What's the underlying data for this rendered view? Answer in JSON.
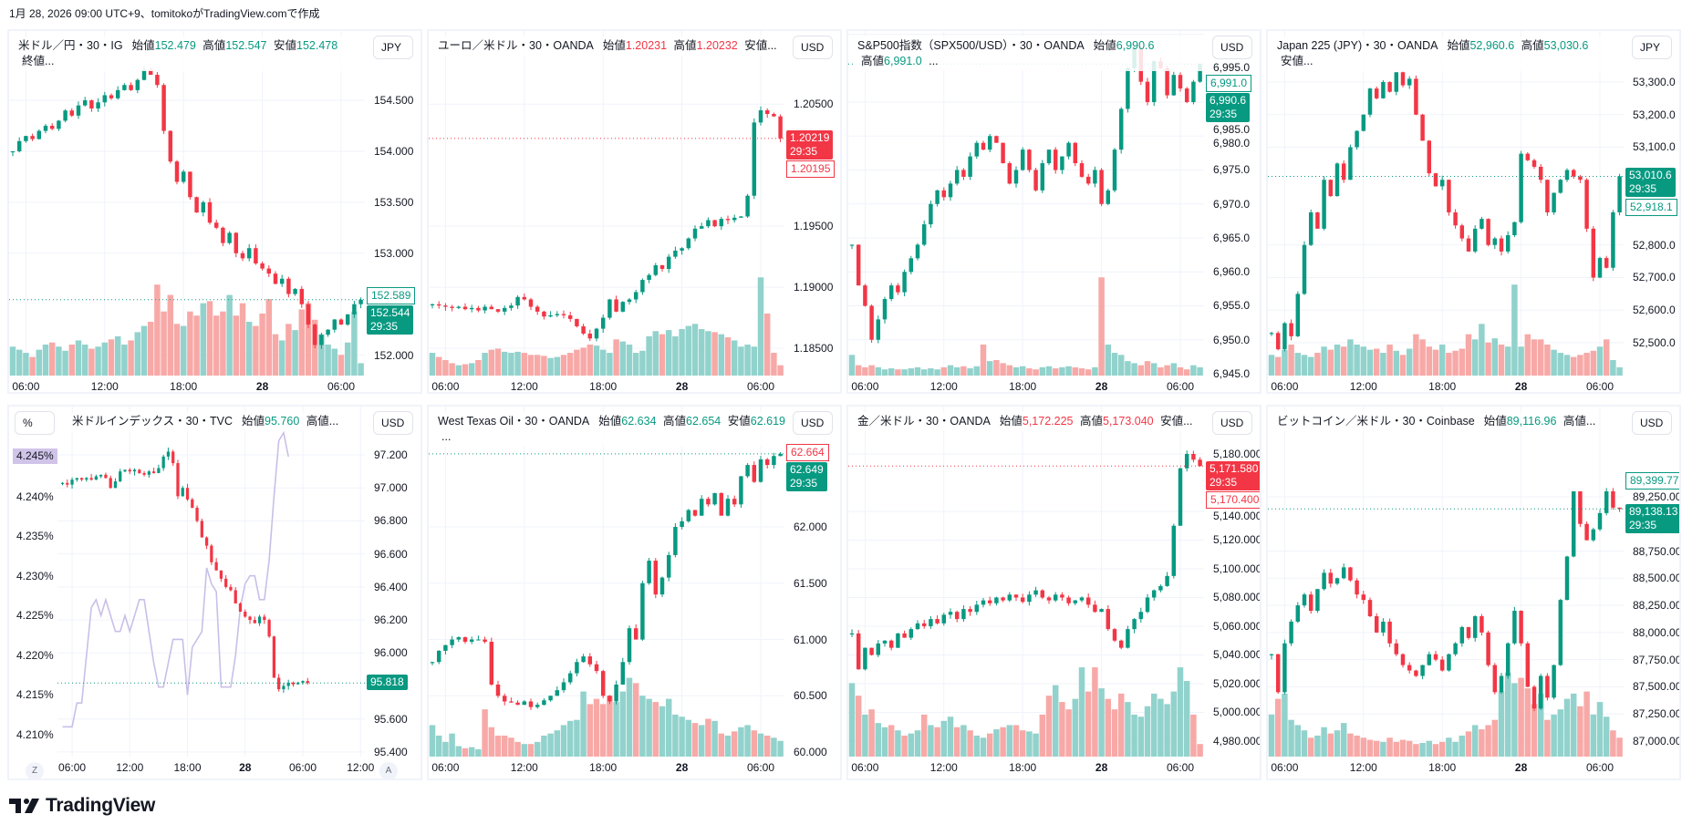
{
  "caption": "1月 28, 2026 09:00 UTC+9、tomitokoがTradingView.comで作成",
  "brand": "TradingView",
  "colors": {
    "up": "#089981",
    "down": "#f23645",
    "vol_up": "#92d2cc",
    "vol_down": "#f7a9a7",
    "yield": "#c9bfe8"
  },
  "charts": [
    {
      "symbol": "米ドル／円・30・IG",
      "ohlc": [
        {
          "l": "始値",
          "v": "152.479"
        },
        {
          "l": "高値",
          "v": "152.547"
        },
        {
          "l": "安値",
          "v": "152.478"
        }
      ],
      "tail": "終値...",
      "dir": "up",
      "currency": "JPY",
      "ylim": [
        151.8,
        155.18
      ],
      "yticks": [
        "154.500",
        "154.000",
        "153.500",
        "153.000",
        "152.000"
      ],
      "time_labels": [
        "06:00",
        "12:00",
        "18:00",
        "28",
        "06:00"
      ],
      "last": {
        "value": "152.544",
        "countdown": "29:35",
        "dir": "up"
      },
      "outline": {
        "value": "152.589",
        "dir": "up",
        "pos": "above"
      },
      "closes": [
        154.0,
        154.1,
        154.15,
        154.12,
        154.2,
        154.25,
        154.22,
        154.3,
        154.4,
        154.35,
        154.45,
        154.5,
        154.42,
        154.48,
        154.55,
        154.52,
        154.6,
        154.65,
        154.6,
        154.7,
        154.8,
        154.75,
        154.65,
        154.2,
        153.9,
        153.7,
        153.8,
        153.55,
        153.4,
        153.5,
        153.3,
        153.25,
        153.1,
        153.2,
        153.0,
        152.95,
        153.05,
        152.9,
        152.85,
        152.8,
        152.7,
        152.75,
        152.6,
        152.65,
        152.5,
        152.3,
        152.1,
        152.2,
        152.25,
        152.35,
        152.3,
        152.4,
        152.5,
        152.544
      ],
      "volumes": [
        28,
        25,
        22,
        18,
        25,
        30,
        32,
        28,
        24,
        30,
        34,
        30,
        26,
        28,
        32,
        35,
        38,
        30,
        34,
        42,
        48,
        52,
        88,
        62,
        78,
        50,
        48,
        62,
        58,
        70,
        72,
        58,
        62,
        78,
        58,
        70,
        52,
        48,
        60,
        74,
        40,
        34,
        50,
        44,
        64,
        70,
        54,
        40,
        30,
        26,
        20,
        32,
        62,
        12
      ]
    },
    {
      "symbol": "ユーロ／米ドル・30・OANDA",
      "ohlc": [
        {
          "l": "始値",
          "v": "1.20231"
        },
        {
          "l": "高値",
          "v": "1.20232"
        }
      ],
      "tail": "安値...",
      "dir": "down",
      "currency": "USD",
      "ylim": [
        1.18276,
        1.211
      ],
      "yticks": [
        "1.20500",
        "1.19500",
        "1.19000",
        "1.18500"
      ],
      "time_labels": [
        "06:00",
        "12:00",
        "18:00",
        "28",
        "06:00"
      ],
      "last": {
        "value": "1.20219",
        "countdown": "29:35",
        "dir": "down"
      },
      "outline": {
        "value": "1.20195",
        "dir": "down",
        "pos": "below"
      },
      "closes": [
        1.1886,
        1.1885,
        1.1884,
        1.1883,
        1.1884,
        1.1882,
        1.1883,
        1.1881,
        1.1884,
        1.1882,
        1.188,
        1.1883,
        1.1885,
        1.1892,
        1.189,
        1.1884,
        1.188,
        1.1876,
        1.1877,
        1.1878,
        1.1877,
        1.1874,
        1.1868,
        1.1862,
        1.1858,
        1.1866,
        1.1875,
        1.189,
        1.188,
        1.1888,
        1.189,
        1.1896,
        1.1906,
        1.191,
        1.1918,
        1.1915,
        1.1925,
        1.193,
        1.1932,
        1.194,
        1.1948,
        1.195,
        1.1955,
        1.195,
        1.1956,
        1.1955,
        1.1957,
        1.1958,
        1.1975,
        1.2035,
        1.2045,
        1.2042,
        1.204,
        1.2022
      ],
      "volumes": [
        22,
        18,
        15,
        12,
        10,
        11,
        12,
        15,
        22,
        25,
        26,
        23,
        22,
        23,
        22,
        20,
        20,
        19,
        17,
        18,
        20,
        22,
        25,
        27,
        30,
        29,
        25,
        22,
        35,
        33,
        30,
        22,
        24,
        38,
        43,
        40,
        44,
        38,
        45,
        48,
        50,
        45,
        43,
        42,
        40,
        37,
        34,
        28,
        30,
        28,
        95,
        60,
        22,
        10
      ]
    },
    {
      "symbol": "S&P500指数（SPX500/USD）・30・OANDA",
      "ohlc": [
        {
          "l": "始値",
          "v": "6,990.6"
        },
        {
          "l": "高値",
          "v": "6,991.0"
        }
      ],
      "tail": "...",
      "dir": "up",
      "currency": "USD",
      "ylim": [
        6944.73,
        6995.47
      ],
      "yticks": [
        "6,995.0",
        "6,985.0",
        "6,980.0",
        "6,975.0",
        "6,970.0",
        "6,965.0",
        "6,960.0",
        "6,955.0",
        "6,950.0",
        "6,945.0"
      ],
      "time_labels": [
        "06:00",
        "12:00",
        "18:00",
        "28",
        "06:00"
      ],
      "last": {
        "value": "6,990.6",
        "countdown": "29:35",
        "dir": "up"
      },
      "outline": {
        "value": "6,991.0",
        "dir": "up",
        "pos": "above"
      },
      "closes": [
        6964,
        6958,
        6955,
        6950,
        6953,
        6956,
        6958,
        6957,
        6960,
        6962,
        6964,
        6967,
        6970,
        6972,
        6971,
        6973,
        6975,
        6974,
        6977,
        6979,
        6978,
        6980,
        6979,
        6976,
        6973,
        6975,
        6978,
        6975,
        6972,
        6976,
        6978,
        6975,
        6977,
        6979,
        6976,
        6974,
        6973,
        6975,
        6970,
        6972,
        6978,
        6984,
        6990,
        6993,
        6988,
        6985,
        6991,
        6990,
        6986,
        6989,
        6987,
        6985,
        6988,
        6990.6
      ],
      "volumes": [
        20,
        10,
        8,
        10,
        8,
        6,
        7,
        6,
        6,
        7,
        8,
        6,
        7,
        6,
        8,
        10,
        8,
        9,
        7,
        9,
        30,
        14,
        15,
        12,
        10,
        8,
        9,
        7,
        6,
        8,
        9,
        7,
        8,
        9,
        8,
        7,
        6,
        8,
        95,
        30,
        22,
        20,
        14,
        12,
        10,
        14,
        12,
        8,
        10,
        12,
        8,
        6,
        10,
        8
      ]
    },
    {
      "symbol": "Japan 225 (JPY)・30・OANDA",
      "ohlc": [
        {
          "l": "始値",
          "v": "52,960.6"
        },
        {
          "l": "高値",
          "v": "53,030.6"
        }
      ],
      "tail": "安値...",
      "dir": "up",
      "currency": "JPY",
      "ylim": [
        52399.3,
        53456.6
      ],
      "yticks": [
        "53,300.0",
        "53,200.0",
        "53,100.0",
        "52,800.0",
        "52,700.0",
        "52,600.0",
        "52,500.0"
      ],
      "time_labels": [
        "06:00",
        "12:00",
        "18:00",
        "28",
        "06:00"
      ],
      "last": {
        "value": "53,010.6",
        "countdown": "29:35",
        "dir": "up"
      },
      "outline": {
        "value": "52,918.1",
        "dir": "up",
        "pos": "below"
      },
      "closes": [
        52530,
        52480,
        52560,
        52520,
        52650,
        52800,
        52900,
        52850,
        53000,
        52950,
        53050,
        53000,
        53100,
        53150,
        53200,
        53280,
        53250,
        53300,
        53270,
        53330,
        53290,
        53310,
        53200,
        53120,
        53020,
        52980,
        53000,
        52900,
        52860,
        52820,
        52780,
        52850,
        52880,
        52800,
        52820,
        52780,
        52830,
        52870,
        53080,
        53060,
        53040,
        53000,
        52900,
        52960,
        53000,
        53030,
        53010,
        53000,
        52850,
        52700,
        52760,
        52730,
        52900,
        53010.6
      ],
      "volumes": [
        20,
        18,
        25,
        30,
        22,
        20,
        18,
        22,
        28,
        25,
        30,
        28,
        35,
        30,
        28,
        25,
        26,
        22,
        30,
        24,
        20,
        26,
        40,
        35,
        28,
        25,
        30,
        22,
        24,
        26,
        40,
        35,
        50,
        32,
        36,
        30,
        28,
        88,
        28,
        40,
        35,
        35,
        30,
        25,
        22,
        20,
        18,
        20,
        22,
        24,
        28,
        35,
        15,
        8
      ]
    },
    {
      "symbol": "米ドルインデックス・30・TVC",
      "ohlc": [
        {
          "l": "始値",
          "v": "95.760"
        }
      ],
      "tail": "高値...",
      "dir": "up",
      "currency": "USD",
      "left_unit": "%",
      "ylim": [
        95.372,
        97.493
      ],
      "yticks": [
        "97.200",
        "97.000",
        "96.800",
        "96.600",
        "96.400",
        "96.200",
        "96.000",
        "95.600",
        "95.400"
      ],
      "ylim2": [
        4.20725,
        4.2513
      ],
      "yticks2": [
        "4.240%",
        "4.235%",
        "4.230%",
        "4.225%",
        "4.220%",
        "4.215%",
        "4.210%"
      ],
      "yield_tag": "4.245%",
      "time_labels": [
        "06:00",
        "12:00",
        "18:00",
        "28",
        "06:00",
        "12:00"
      ],
      "scale_buttons": {
        "left": "Z",
        "right": "A"
      },
      "last": {
        "value": "95.818",
        "dir": "up"
      },
      "closes": [
        97.03,
        97.02,
        97.05,
        97.06,
        97.05,
        97.06,
        97.05,
        97.07,
        97.08,
        97.06,
        97.0,
        97.04,
        97.1,
        97.11,
        97.1,
        97.11,
        97.09,
        97.08,
        97.1,
        97.09,
        97.12,
        97.19,
        97.22,
        97.15,
        96.95,
        97.0,
        96.93,
        96.88,
        96.8,
        96.7,
        96.65,
        96.55,
        96.5,
        96.45,
        96.4,
        96.38,
        96.3,
        96.25,
        96.22,
        96.2,
        96.18,
        96.22,
        96.2,
        96.1,
        95.85,
        95.78,
        95.8,
        95.82,
        95.81,
        95.82,
        95.83,
        95.818
      ],
      "yield_series": [
        4.211,
        4.211,
        4.211,
        4.214,
        4.214,
        4.22,
        4.226,
        4.227,
        4.225,
        4.227,
        4.225,
        4.223,
        4.223,
        4.225,
        4.223,
        4.225,
        4.227,
        4.227,
        4.223,
        4.219,
        4.216,
        4.216,
        4.219,
        4.222,
        4.222,
        4.222,
        4.215,
        4.221,
        4.222,
        4.223,
        4.231,
        4.229,
        4.228,
        4.216,
        4.216,
        4.216,
        4.22,
        4.226,
        4.229,
        4.23,
        4.23,
        4.227,
        4.227,
        4.232,
        4.24,
        4.247,
        4.248,
        4.245
      ]
    },
    {
      "symbol": "West Texas Oil・30・OANDA",
      "ohlc": [
        {
          "l": "始値",
          "v": "62.634"
        },
        {
          "l": "高値",
          "v": "62.654"
        },
        {
          "l": "安値",
          "v": "62.619"
        }
      ],
      "tail": "...",
      "dir": "up",
      "currency": "USD",
      "ylim": [
        59.96,
        63.069
      ],
      "yticks": [
        "62.000",
        "61.500",
        "61.000",
        "60.500",
        "60.000"
      ],
      "time_labels": [
        "06:00",
        "12:00",
        "18:00",
        "28",
        "06:00"
      ],
      "last": {
        "value": "62.649",
        "countdown": "29:35",
        "dir": "up"
      },
      "outline": {
        "value": "62.664",
        "dir": "down",
        "pos": "above"
      },
      "closes": [
        60.8,
        60.9,
        60.95,
        61.0,
        61.02,
        60.98,
        61.0,
        61.0,
        60.98,
        60.6,
        60.5,
        60.45,
        60.44,
        60.42,
        60.45,
        60.4,
        60.42,
        60.46,
        60.5,
        60.55,
        60.62,
        60.7,
        60.8,
        60.85,
        60.78,
        60.72,
        60.5,
        60.45,
        60.6,
        60.8,
        61.1,
        61.0,
        61.5,
        61.7,
        61.4,
        61.55,
        61.75,
        62.0,
        62.05,
        62.15,
        62.1,
        62.25,
        62.2,
        62.3,
        62.1,
        62.25,
        62.2,
        62.45,
        62.55,
        62.4,
        62.6,
        62.55,
        62.63,
        62.649
      ],
      "volumes": [
        30,
        20,
        14,
        22,
        10,
        8,
        9,
        7,
        45,
        28,
        20,
        20,
        18,
        14,
        12,
        12,
        14,
        20,
        22,
        25,
        30,
        34,
        35,
        62,
        50,
        55,
        50,
        58,
        52,
        62,
        75,
        70,
        58,
        55,
        52,
        48,
        55,
        40,
        38,
        35,
        32,
        30,
        36,
        34,
        22,
        20,
        24,
        28,
        30,
        25,
        22,
        20,
        18,
        15
      ]
    },
    {
      "symbol": "金／米ドル・30・OANDA",
      "ohlc": [
        {
          "l": "始値",
          "v": "5,172.225"
        },
        {
          "l": "高値",
          "v": "5,173.040"
        }
      ],
      "tail": "安値...",
      "dir": "down",
      "currency": "USD",
      "ylim": [
        4969.2,
        5213
      ],
      "yticks": [
        "5,180.000",
        "5,140.000",
        "5,120.000",
        "5,100.000",
        "5,080.000",
        "5,060.000",
        "5,040.000",
        "5,020.000",
        "5,000.000",
        "4,980.000"
      ],
      "time_labels": [
        "06:00",
        "12:00",
        "18:00",
        "28",
        "06:00"
      ],
      "last": {
        "value": "5,171.580",
        "countdown": "29:35",
        "dir": "down"
      },
      "outline": {
        "value": "5,170.400",
        "dir": "down",
        "pos": "below"
      },
      "closes": [
        5055,
        5030,
        5045,
        5040,
        5048,
        5050,
        5045,
        5055,
        5052,
        5058,
        5062,
        5060,
        5065,
        5062,
        5068,
        5070,
        5065,
        5072,
        5070,
        5075,
        5078,
        5076,
        5080,
        5078,
        5082,
        5080,
        5077,
        5082,
        5085,
        5080,
        5078,
        5082,
        5080,
        5076,
        5078,
        5080,
        5075,
        5070,
        5072,
        5058,
        5050,
        5045,
        5058,
        5065,
        5070,
        5080,
        5085,
        5088,
        5095,
        5130,
        5170,
        5180,
        5176,
        5171.58
      ],
      "volumes": [
        70,
        58,
        40,
        45,
        32,
        28,
        30,
        25,
        20,
        22,
        25,
        40,
        30,
        28,
        34,
        38,
        28,
        30,
        25,
        20,
        18,
        22,
        26,
        28,
        30,
        30,
        25,
        24,
        22,
        40,
        58,
        68,
        52,
        45,
        55,
        85,
        62,
        85,
        65,
        55,
        45,
        60,
        52,
        40,
        38,
        48,
        60,
        55,
        50,
        62,
        85,
        72,
        40,
        12
      ]
    },
    {
      "symbol": "ビットコイン／米ドル・30・Coinbase",
      "ohlc": [
        {
          "l": "始値",
          "v": "89,116.96"
        }
      ],
      "tail": "高値...",
      "dir": "up",
      "currency": "USD",
      "ylim": [
        86857,
        90081
      ],
      "yticks": [
        "89,250.00",
        "88,750.00",
        "88,500.00",
        "88,250.00",
        "88,000.00",
        "87,750.00",
        "87,500.00",
        "87,250.00",
        "87,000.00"
      ],
      "time_labels": [
        "06:00",
        "12:00",
        "18:00",
        "28",
        "06:00"
      ],
      "last": {
        "value": "89,138.13",
        "countdown": "29:35",
        "dir": "up"
      },
      "outline": {
        "value": "89,399.77",
        "dir": "up",
        "pos": "above"
      },
      "closes": [
        87800,
        87450,
        87900,
        88100,
        88250,
        88350,
        88200,
        88400,
        88550,
        88450,
        88500,
        88600,
        88480,
        88350,
        88300,
        88150,
        88000,
        88100,
        87900,
        87800,
        87700,
        87650,
        87600,
        87700,
        87800,
        87750,
        87650,
        87800,
        87900,
        88050,
        87950,
        88150,
        88000,
        87700,
        87450,
        87600,
        87900,
        88200,
        87900,
        87500,
        87300,
        87600,
        87400,
        87700,
        88300,
        88700,
        89300,
        89000,
        88850,
        88950,
        89100,
        89300,
        89150,
        89138.13
      ],
      "volumes": [
        40,
        55,
        60,
        35,
        30,
        25,
        18,
        20,
        28,
        22,
        25,
        32,
        22,
        20,
        18,
        16,
        15,
        14,
        18,
        14,
        16,
        15,
        12,
        13,
        15,
        12,
        14,
        18,
        14,
        20,
        24,
        30,
        26,
        30,
        35,
        62,
        80,
        70,
        75,
        65,
        50,
        60,
        35,
        40,
        45,
        55,
        60,
        48,
        62,
        40,
        52,
        38,
        25,
        18
      ]
    }
  ]
}
